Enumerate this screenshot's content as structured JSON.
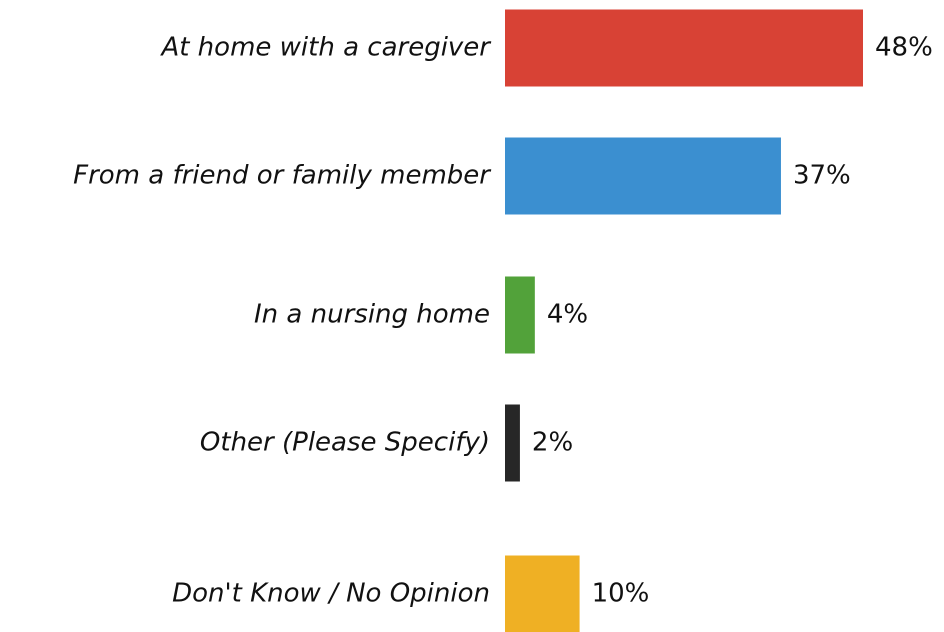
{
  "chart_data": {
    "type": "bar",
    "categories": [
      "At home with a caregiver",
      "From a friend or family member",
      "In a nursing home",
      "Other (Please Specify)",
      "Don't Know / No Opinion"
    ],
    "values": [
      48,
      37,
      4,
      2,
      10
    ],
    "value_labels": [
      "48%",
      "37%",
      "4%",
      "2%",
      "10%"
    ],
    "colors": [
      "#d84235",
      "#3b8fd0",
      "#52a23a",
      "#272727",
      "#efb024"
    ]
  }
}
